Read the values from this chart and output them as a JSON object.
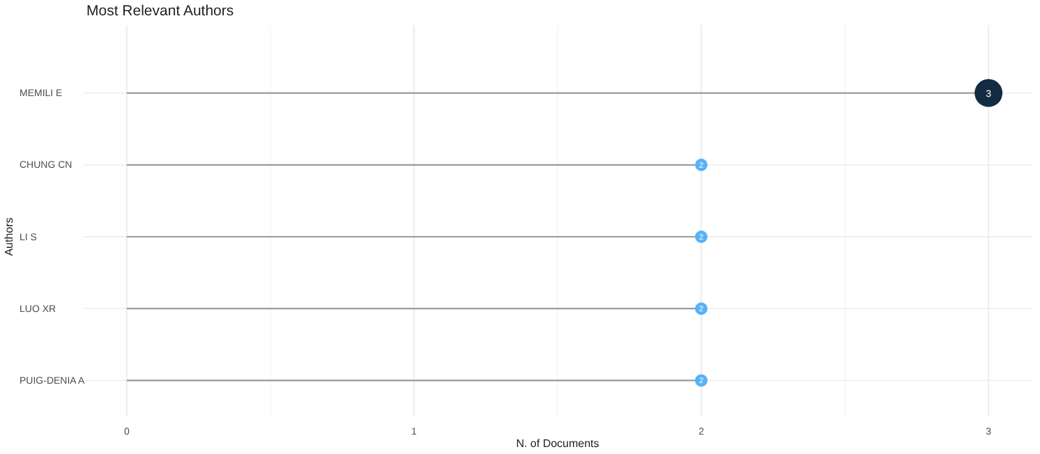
{
  "chart_data": {
    "type": "lollipop",
    "orientation": "horizontal",
    "title": "Most Relevant Authors",
    "xlabel": "N. of Documents",
    "ylabel": "Authors",
    "categories": [
      "MEMILI E",
      "CHUNG CN",
      "LI S",
      "LUO XR",
      "PUIG-DENIA A"
    ],
    "values": [
      3,
      2,
      2,
      2,
      2
    ],
    "sizes": [
      1,
      0.2,
      0.2,
      0.2,
      0.2
    ],
    "colors": [
      "#132b43",
      "#56b1f7",
      "#56b1f7",
      "#56b1f7",
      "#56b1f7"
    ],
    "xlim": [
      -0.15,
      3.15
    ],
    "xticks": [
      0,
      1,
      2,
      3
    ],
    "grid": true,
    "data_labels": true
  }
}
